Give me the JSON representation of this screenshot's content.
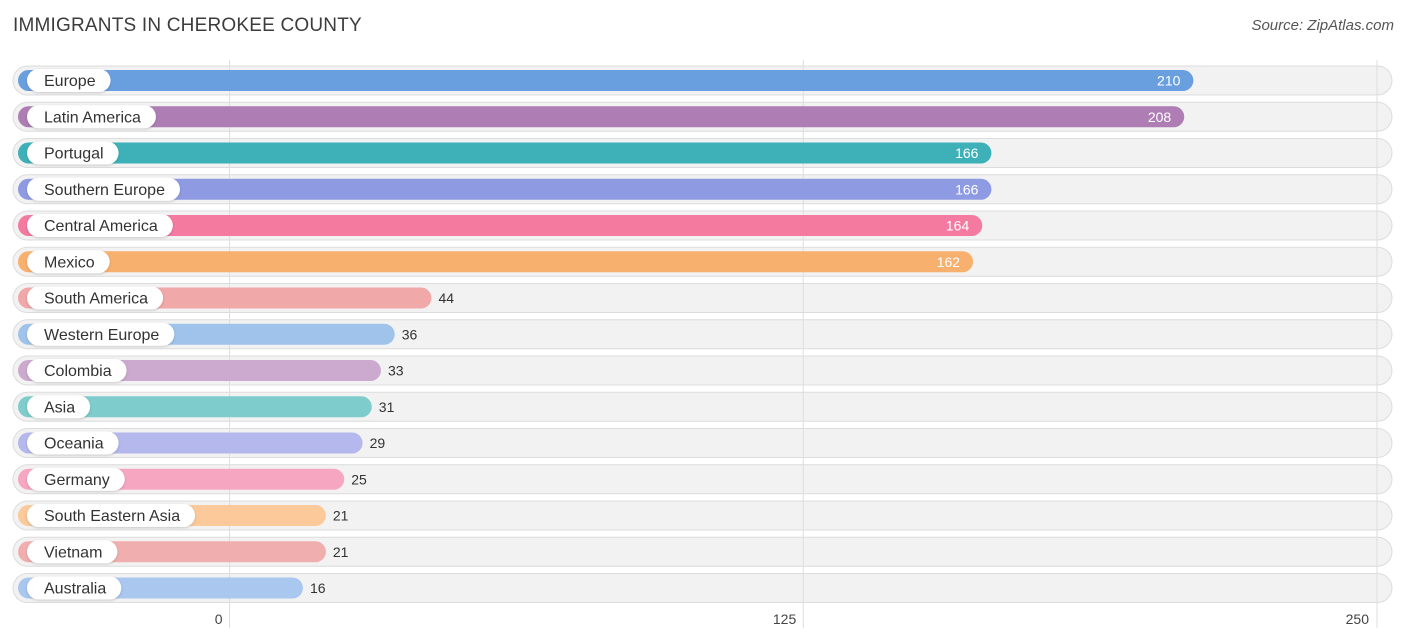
{
  "header": {
    "title": "IMMIGRANTS IN CHEROKEE COUNTY",
    "source": "Source: ZipAtlas.com"
  },
  "chart_data": {
    "type": "bar",
    "orientation": "horizontal",
    "title": "IMMIGRANTS IN CHEROKEE COUNTY",
    "xlabel": "",
    "ylabel": "",
    "xlim": [
      0,
      250
    ],
    "ticks": [
      0,
      125,
      250
    ],
    "grid": true,
    "categories": [
      "Europe",
      "Latin America",
      "Portugal",
      "Southern Europe",
      "Central America",
      "Mexico",
      "South America",
      "Western Europe",
      "Colombia",
      "Asia",
      "Oceania",
      "Germany",
      "South Eastern Asia",
      "Vietnam",
      "Australia"
    ],
    "values": [
      210,
      208,
      166,
      166,
      164,
      162,
      44,
      36,
      33,
      31,
      29,
      25,
      21,
      21,
      16
    ],
    "colors": [
      "#6a9fdf",
      "#ad7db3",
      "#3db0b8",
      "#8e9be3",
      "#f47aa0",
      "#f8b06e",
      "#f0a8a8",
      "#9fc3ea",
      "#cca9cf",
      "#7fcccd",
      "#b4b8ec",
      "#f7a6c1",
      "#fbc99a",
      "#f1aeae",
      "#a9c7ef"
    ]
  }
}
